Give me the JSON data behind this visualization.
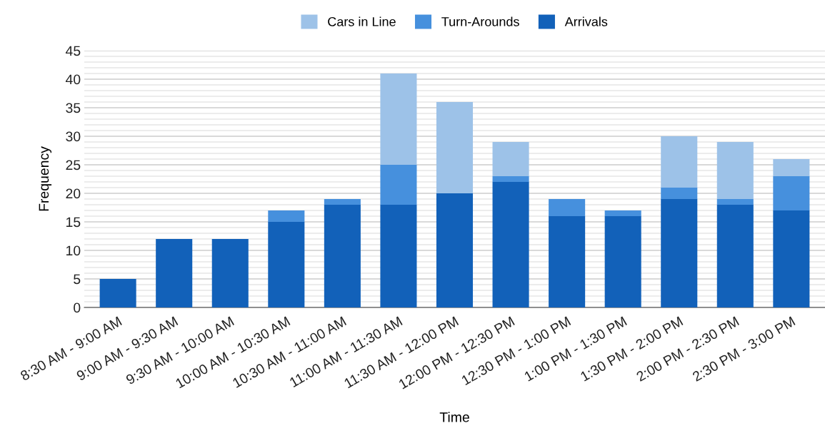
{
  "chart_data": {
    "type": "bar",
    "stacked": true,
    "xlabel": "Time",
    "ylabel": "Frequency",
    "categories": [
      "8:30 AM - 9:00 AM",
      "9:00 AM - 9:30 AM",
      "9:30 AM - 10:00 AM",
      "10:00 AM - 10:30 AM",
      "10:30 AM - 11:00 AM",
      "11:00 AM - 11:30 AM",
      "11:30 AM - 12:00 PM",
      "12:00 PM - 12:30 PM",
      "12:30 PM - 1:00 PM",
      "1:00 PM - 1:30 PM",
      "1:30 PM - 2:00 PM",
      "2:00 PM - 2:30 PM",
      "2:30 PM - 3:00 PM"
    ],
    "series": [
      {
        "name": "Arrivals",
        "color": "#1261b9",
        "values": [
          5,
          12,
          12,
          15,
          18,
          18,
          20,
          22,
          16,
          16,
          19,
          18,
          17
        ]
      },
      {
        "name": "Turn-Arounds",
        "color": "#4690dd",
        "values": [
          0,
          0,
          0,
          2,
          1,
          7,
          0,
          1,
          3,
          1,
          2,
          1,
          6
        ]
      },
      {
        "name": "Cars in Line",
        "color": "#9dc2e8",
        "values": [
          0,
          0,
          0,
          0,
          0,
          16,
          16,
          6,
          0,
          0,
          9,
          10,
          3
        ]
      }
    ],
    "ylim": [
      0,
      45
    ],
    "yticks": [
      0,
      {
        "value": 1,
        "label": null
      },
      {
        "value": 2,
        "label": null
      },
      {
        "value": 3,
        "label": null
      },
      {
        "value": 4,
        "label": null
      },
      5,
      {
        "value": 6,
        "label": null
      },
      {
        "value": 7,
        "label": null
      },
      {
        "value": 8,
        "label": null
      },
      {
        "value": 9,
        "label": null
      },
      10,
      {
        "value": 11,
        "label": null
      },
      {
        "value": 12,
        "label": null
      },
      {
        "value": 13,
        "label": null
      },
      {
        "value": 14,
        "label": null
      },
      15,
      {
        "value": 16,
        "label": null
      },
      {
        "value": 17,
        "label": null
      },
      {
        "value": 18,
        "label": null
      },
      {
        "value": 19,
        "label": null
      },
      20,
      {
        "value": 21,
        "label": null
      },
      {
        "value": 22,
        "label": null
      },
      {
        "value": 23,
        "label": null
      },
      {
        "value": 24,
        "label": null
      },
      25,
      {
        "value": 26,
        "label": null
      },
      {
        "value": 27,
        "label": null
      },
      {
        "value": 28,
        "label": null
      },
      {
        "value": 29,
        "label": null
      },
      30,
      {
        "value": 31,
        "label": null
      },
      {
        "value": 32,
        "label": null
      },
      {
        "value": 33,
        "label": null
      },
      {
        "value": 34,
        "label": null
      },
      35,
      {
        "value": 36,
        "label": null
      },
      {
        "value": 37,
        "label": null
      },
      {
        "value": 38,
        "label": null
      },
      {
        "value": 39,
        "label": null
      },
      40,
      {
        "value": 41,
        "label": null
      },
      {
        "value": 42,
        "label": null
      },
      {
        "value": 43,
        "label": null
      },
      {
        "value": 44,
        "label": null
      },
      45
    ],
    "grid": "y",
    "legend": "top"
  }
}
